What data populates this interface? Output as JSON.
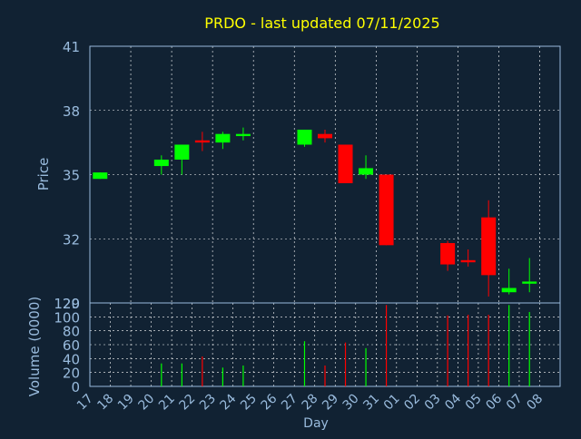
{
  "chart_data": [
    {
      "type": "candlestick",
      "title": "PRDO - last updated 07/11/2025",
      "ylabel": "Price",
      "ylim": [
        29,
        41
      ],
      "yticks": [
        41,
        38,
        35,
        32,
        29
      ],
      "grid": true,
      "colors": {
        "up": "#00ff00",
        "down": "#ff0000",
        "title": "#ffff00",
        "axis": "#99bbdd",
        "background": "#112233"
      },
      "categories": [
        "17",
        "18",
        "19",
        "20",
        "21",
        "22",
        "23",
        "24",
        "25",
        "26",
        "27",
        "28",
        "29",
        "30",
        "31",
        "01",
        "02",
        "03",
        "04",
        "05",
        "06",
        "07",
        "08"
      ],
      "candles": [
        {
          "day": "17",
          "open": 34.8,
          "high": 35.1,
          "low": 34.8,
          "close": 35.1
        },
        {
          "day": "20",
          "open": 35.4,
          "high": 35.9,
          "low": 35.0,
          "close": 35.7
        },
        {
          "day": "21",
          "open": 35.7,
          "high": 36.4,
          "low": 35.0,
          "close": 36.4
        },
        {
          "day": "22",
          "open": 36.6,
          "high": 37.0,
          "low": 36.1,
          "close": 36.5
        },
        {
          "day": "23",
          "open": 36.5,
          "high": 37.0,
          "low": 36.2,
          "close": 36.9
        },
        {
          "day": "24",
          "open": 36.8,
          "high": 37.2,
          "low": 36.6,
          "close": 36.9
        },
        {
          "day": "27",
          "open": 36.4,
          "high": 37.1,
          "low": 36.3,
          "close": 37.1
        },
        {
          "day": "28",
          "open": 36.9,
          "high": 37.1,
          "low": 36.5,
          "close": 36.7
        },
        {
          "day": "29",
          "open": 36.4,
          "high": 36.4,
          "low": 34.6,
          "close": 34.6
        },
        {
          "day": "30",
          "open": 35.0,
          "high": 35.9,
          "low": 34.8,
          "close": 35.3
        },
        {
          "day": "31",
          "open": 35.0,
          "high": 35.0,
          "low": 31.7,
          "close": 31.7
        },
        {
          "day": "03",
          "open": 31.8,
          "high": 31.9,
          "low": 30.5,
          "close": 30.8
        },
        {
          "day": "04",
          "open": 31.0,
          "high": 31.5,
          "low": 30.7,
          "close": 30.9
        },
        {
          "day": "05",
          "open": 33.0,
          "high": 33.8,
          "low": 29.3,
          "close": 30.3
        },
        {
          "day": "06",
          "open": 29.5,
          "high": 30.6,
          "low": 29.4,
          "close": 29.7
        },
        {
          "day": "07",
          "open": 29.9,
          "high": 31.1,
          "low": 29.5,
          "close": 30.0
        }
      ]
    },
    {
      "type": "bar",
      "ylabel": "Volume (0000)",
      "xlabel": "Day",
      "ylim": [
        0,
        120
      ],
      "yticks": [
        120,
        100,
        80,
        60,
        40,
        20,
        0
      ],
      "grid": true,
      "categories": [
        "17",
        "18",
        "19",
        "20",
        "21",
        "22",
        "23",
        "24",
        "25",
        "26",
        "27",
        "28",
        "29",
        "30",
        "31",
        "01",
        "02",
        "03",
        "04",
        "05",
        "06",
        "07",
        "08"
      ],
      "bars": [
        {
          "day": "20",
          "value": 33,
          "direction": "up"
        },
        {
          "day": "21",
          "value": 33,
          "direction": "up"
        },
        {
          "day": "22",
          "value": 43,
          "direction": "down"
        },
        {
          "day": "23",
          "value": 27,
          "direction": "up"
        },
        {
          "day": "24",
          "value": 30,
          "direction": "up"
        },
        {
          "day": "27",
          "value": 65,
          "direction": "up"
        },
        {
          "day": "28",
          "value": 30,
          "direction": "down"
        },
        {
          "day": "29",
          "value": 63,
          "direction": "down"
        },
        {
          "day": "30",
          "value": 55,
          "direction": "up"
        },
        {
          "day": "31",
          "value": 117,
          "direction": "down"
        },
        {
          "day": "03",
          "value": 102,
          "direction": "down"
        },
        {
          "day": "04",
          "value": 103,
          "direction": "down"
        },
        {
          "day": "05",
          "value": 103,
          "direction": "down"
        },
        {
          "day": "06",
          "value": 117,
          "direction": "up"
        },
        {
          "day": "07",
          "value": 107,
          "direction": "up"
        }
      ]
    }
  ]
}
